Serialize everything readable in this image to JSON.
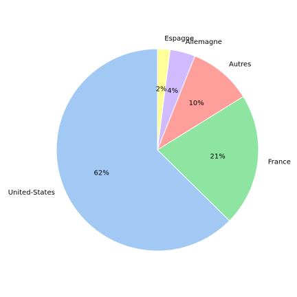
{
  "chart_data": {
    "type": "pie",
    "title": "",
    "start_angle_deg": 90,
    "direction": "clockwise",
    "slices": [
      {
        "label": "Espagne",
        "value": 2,
        "pct_label": "2%",
        "color": "#ffff99"
      },
      {
        "label": "Allemagne",
        "value": 4,
        "pct_label": "4%",
        "color": "#d0bbff"
      },
      {
        "label": "Autres",
        "value": 10,
        "pct_label": "10%",
        "color": "#ff9f9b"
      },
      {
        "label": "France",
        "value": 21,
        "pct_label": "21%",
        "color": "#8de5a1"
      },
      {
        "label": "United-States",
        "value": 62,
        "pct_label": "62%",
        "color": "#a1c9f4"
      }
    ],
    "edge_color": "#ffffff",
    "legend": "none"
  }
}
